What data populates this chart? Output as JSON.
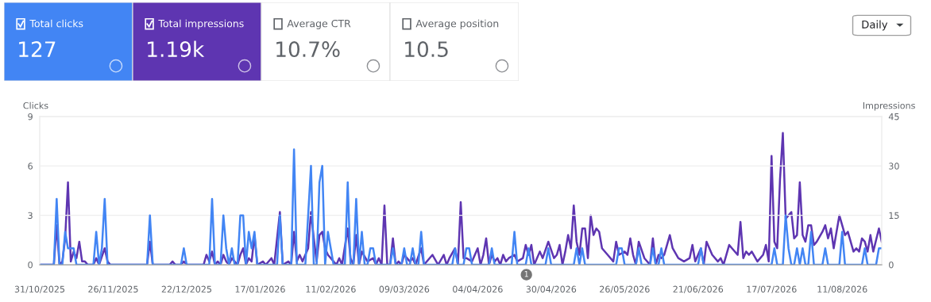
{
  "chart_data": [
    {
      "type": "other",
      "categories": [
        "Total clicks",
        "Total impressions",
        "Average CTR",
        "Average position"
      ],
      "value_labels": [
        "127",
        "1.19k",
        "10.7%",
        "10.5"
      ],
      "colors": [
        "#4285f4",
        "#5e35b1",
        "#ffffff",
        "#ffffff"
      ],
      "annotations": [
        "Daily"
      ]
    },
    {
      "type": "line",
      "ylabel": "Clicks",
      "y2label": "Impressions",
      "xlim": [
        "2025-10-31",
        "2026-08-25"
      ],
      "xticks": [
        {
          "value": "2025-10-31",
          "label": "31/10/2025"
        },
        {
          "value": "2025-11-26",
          "label": "26/11/2025"
        },
        {
          "value": "2025-12-22",
          "label": "22/12/2025"
        },
        {
          "value": "2026-01-17",
          "label": "17/01/2026"
        },
        {
          "value": "2026-02-11",
          "label": "11/02/2026"
        },
        {
          "value": "2026-03-09",
          "label": "09/03/2026"
        },
        {
          "value": "2026-04-04",
          "label": "04/04/2026"
        },
        {
          "value": "2026-04-30",
          "label": "30/04/2026"
        },
        {
          "value": "2026-05-26",
          "label": "26/05/2026"
        },
        {
          "value": "2026-06-21",
          "label": "21/06/2026"
        },
        {
          "value": "2026-07-17",
          "label": "17/07/2026"
        },
        {
          "value": "2026-08-11",
          "label": "11/08/2026"
        }
      ],
      "ylim": [
        0,
        9
      ],
      "yticks": [
        0,
        3,
        6,
        9
      ],
      "y2lim": [
        0,
        45
      ],
      "y2ticks": [
        0,
        15,
        30,
        45
      ],
      "grid": "y",
      "marker": "none",
      "line_style": "solid",
      "annotations": [
        "1"
      ],
      "series": [
        {
          "axis": "y2",
          "color": "#5e35b1",
          "x": [
            "2025-10-31",
            "2025-11-05",
            "2025-11-06",
            "2025-11-07",
            "2025-11-08",
            "2025-11-09",
            "2025-11-10",
            "2025-11-11",
            "2025-11-12",
            "2025-11-13",
            "2025-11-14",
            "2025-11-15",
            "2025-11-16",
            "2025-11-17",
            "2025-11-19",
            "2025-11-20",
            "2025-11-21",
            "2025-11-23",
            "2025-11-24",
            "2025-11-25",
            "2025-12-08",
            "2025-12-09",
            "2025-12-10",
            "2025-12-16",
            "2025-12-17",
            "2025-12-18",
            "2025-12-20",
            "2025-12-21",
            "2025-12-22",
            "2025-12-28",
            "2025-12-29",
            "2025-12-30",
            "2025-12-31",
            "2026-01-01",
            "2026-01-02",
            "2026-01-03",
            "2026-01-04",
            "2026-01-05",
            "2026-01-06",
            "2026-01-07",
            "2026-01-08",
            "2026-01-09",
            "2026-01-10",
            "2026-01-11",
            "2026-01-12",
            "2026-01-13",
            "2026-01-14",
            "2026-01-15",
            "2026-01-16",
            "2026-01-18",
            "2026-01-19",
            "2026-01-21",
            "2026-01-22",
            "2026-01-24",
            "2026-01-25",
            "2026-01-27",
            "2026-01-28",
            "2026-01-29",
            "2026-01-30",
            "2026-01-31",
            "2026-02-01",
            "2026-02-03",
            "2026-02-04",
            "2026-02-05",
            "2026-02-06",
            "2026-02-07",
            "2026-02-08",
            "2026-02-09",
            "2026-02-10",
            "2026-02-12",
            "2026-02-13",
            "2026-02-14",
            "2026-02-15",
            "2026-02-17",
            "2026-02-18",
            "2026-02-19",
            "2026-02-20",
            "2026-02-21",
            "2026-02-22",
            "2026-02-24",
            "2026-02-26",
            "2026-02-27",
            "2026-02-28",
            "2026-03-01",
            "2026-03-02",
            "2026-03-03",
            "2026-03-04",
            "2026-03-05",
            "2026-03-06",
            "2026-03-07",
            "2026-03-08",
            "2026-03-09",
            "2026-03-11",
            "2026-03-12",
            "2026-03-13",
            "2026-03-15",
            "2026-03-16",
            "2026-03-19",
            "2026-03-21",
            "2026-03-23",
            "2026-03-24",
            "2026-03-25",
            "2026-03-27",
            "2026-03-28",
            "2026-03-29",
            "2026-03-30",
            "2026-03-31",
            "2026-04-02",
            "2026-04-04",
            "2026-04-05",
            "2026-04-06",
            "2026-04-07",
            "2026-04-08",
            "2026-04-09",
            "2026-04-10",
            "2026-04-11",
            "2026-04-12",
            "2026-04-13",
            "2026-04-14",
            "2026-04-15",
            "2026-04-17",
            "2026-04-18",
            "2026-04-20",
            "2026-04-21",
            "2026-04-22",
            "2026-04-23",
            "2026-04-24",
            "2026-04-26",
            "2026-04-27",
            "2026-04-29",
            "2026-05-01",
            "2026-05-02",
            "2026-05-03",
            "2026-05-04",
            "2026-05-05",
            "2026-05-06",
            "2026-05-07",
            "2026-05-08",
            "2026-05-09",
            "2026-05-10",
            "2026-05-11",
            "2026-05-12",
            "2026-05-13",
            "2026-05-14",
            "2026-05-15",
            "2026-05-16",
            "2026-05-17",
            "2026-05-18",
            "2026-05-20",
            "2026-05-22",
            "2026-05-23",
            "2026-05-24",
            "2026-05-26",
            "2026-05-27",
            "2026-05-28",
            "2026-05-29",
            "2026-05-30",
            "2026-05-31",
            "2026-06-02",
            "2026-06-04",
            "2026-06-05",
            "2026-06-06",
            "2026-06-07",
            "2026-06-08",
            "2026-06-09",
            "2026-06-11",
            "2026-06-12",
            "2026-06-14",
            "2026-06-16",
            "2026-06-18",
            "2026-06-19",
            "2026-06-20",
            "2026-06-21",
            "2026-06-22",
            "2026-06-23",
            "2026-06-24",
            "2026-06-26",
            "2026-06-28",
            "2026-06-29",
            "2026-06-30",
            "2026-07-01",
            "2026-07-02",
            "2026-07-03",
            "2026-07-05",
            "2026-07-06",
            "2026-07-07",
            "2026-07-08",
            "2026-07-09",
            "2026-07-10",
            "2026-07-12",
            "2026-07-14",
            "2026-07-15",
            "2026-07-16",
            "2026-07-17",
            "2026-07-18",
            "2026-07-19",
            "2026-07-20",
            "2026-07-21",
            "2026-07-22",
            "2026-07-23",
            "2026-07-24",
            "2026-07-25",
            "2026-07-26",
            "2026-07-27",
            "2026-07-28",
            "2026-07-29",
            "2026-07-30",
            "2026-07-31",
            "2026-08-01",
            "2026-08-02",
            "2026-08-04",
            "2026-08-05",
            "2026-08-06",
            "2026-08-07",
            "2026-08-08",
            "2026-08-09",
            "2026-08-10",
            "2026-08-11",
            "2026-08-12",
            "2026-08-13",
            "2026-08-15",
            "2026-08-16",
            "2026-08-17",
            "2026-08-18",
            "2026-08-19",
            "2026-08-20",
            "2026-08-21",
            "2026-08-22",
            "2026-08-24",
            "2026-08-25"
          ],
          "values": [
            0,
            0,
            12,
            0,
            1,
            8,
            25,
            1,
            4,
            2,
            7,
            1,
            1,
            0,
            0,
            2,
            0,
            5,
            1,
            0,
            0,
            7,
            0,
            0,
            1,
            0,
            0,
            1,
            0,
            0,
            3,
            1,
            4,
            0,
            1,
            0,
            3,
            1,
            0,
            2,
            1,
            0,
            3,
            5,
            0,
            2,
            1,
            9,
            0,
            1,
            0,
            2,
            0,
            16,
            0,
            1,
            0,
            10,
            1,
            3,
            1,
            5,
            16,
            8,
            1,
            9,
            10,
            5,
            3,
            1,
            0,
            2,
            0,
            11,
            2,
            0,
            9,
            0,
            4,
            1,
            2,
            0,
            2,
            0,
            18,
            0,
            0,
            8,
            0,
            1,
            0,
            3,
            1,
            2,
            0,
            5,
            0,
            3,
            0,
            3,
            0,
            2,
            5,
            0,
            19,
            2,
            2,
            1,
            5,
            0,
            3,
            8,
            0,
            3,
            1,
            2,
            0,
            3,
            1,
            2,
            3,
            1,
            2,
            6,
            3,
            6,
            0,
            4,
            2,
            7,
            2,
            3,
            6,
            0,
            4,
            9,
            5,
            18,
            7,
            3,
            11,
            11,
            2,
            15,
            9,
            11,
            10,
            5,
            3,
            1,
            7,
            3,
            4,
            3,
            8,
            3,
            0,
            7,
            2,
            0,
            8,
            0,
            3,
            2,
            3,
            9,
            5,
            2,
            1,
            2,
            6,
            1,
            3,
            5,
            0,
            7,
            3,
            1,
            2,
            0,
            3,
            6,
            5,
            3,
            13,
            2,
            4,
            3,
            4,
            1,
            3,
            6,
            1,
            33,
            7,
            5,
            26,
            40,
            14,
            15,
            16,
            8,
            9,
            25,
            9,
            7,
            12,
            12,
            6,
            7,
            10,
            12,
            8,
            11,
            5,
            10,
            15,
            12,
            9,
            10,
            4,
            5,
            4,
            8,
            7,
            4,
            9,
            4,
            11,
            7
          ]
        },
        {
          "color": "#4285f4",
          "x": [
            "2025-10-31",
            "2025-11-05",
            "2025-11-06",
            "2025-11-07",
            "2025-11-08",
            "2025-11-09",
            "2025-11-10",
            "2025-11-12",
            "2025-11-13",
            "2025-11-19",
            "2025-11-20",
            "2025-11-21",
            "2025-11-22",
            "2025-11-23",
            "2025-11-24",
            "2025-12-08",
            "2025-12-09",
            "2025-12-10",
            "2025-12-20",
            "2025-12-21",
            "2025-12-22",
            "2025-12-30",
            "2025-12-31",
            "2026-01-01",
            "2026-01-03",
            "2026-01-04",
            "2026-01-05",
            "2026-01-06",
            "2026-01-07",
            "2026-01-08",
            "2026-01-09",
            "2026-01-10",
            "2026-01-11",
            "2026-01-12",
            "2026-01-13",
            "2026-01-14",
            "2026-01-15",
            "2026-01-16",
            "2026-01-23",
            "2026-01-24",
            "2026-01-25",
            "2026-01-28",
            "2026-01-29",
            "2026-01-30",
            "2026-02-02",
            "2026-02-04",
            "2026-02-05",
            "2026-02-06",
            "2026-02-07",
            "2026-02-08",
            "2026-02-09",
            "2026-02-10",
            "2026-02-11",
            "2026-02-12",
            "2026-02-16",
            "2026-02-17",
            "2026-02-18",
            "2026-02-19",
            "2026-02-20",
            "2026-02-21",
            "2026-02-22",
            "2026-02-23",
            "2026-02-24",
            "2026-02-25",
            "2026-02-26",
            "2026-02-27",
            "2026-03-04",
            "2026-03-05",
            "2026-03-06",
            "2026-03-08",
            "2026-03-09",
            "2026-03-10",
            "2026-03-11",
            "2026-03-12",
            "2026-03-13",
            "2026-03-14",
            "2026-03-15",
            "2026-03-16",
            "2026-03-26",
            "2026-03-27",
            "2026-03-28",
            "2026-03-30",
            "2026-03-31",
            "2026-04-01",
            "2026-04-02",
            "2026-04-08",
            "2026-04-09",
            "2026-04-10",
            "2026-04-16",
            "2026-04-17",
            "2026-04-18",
            "2026-04-21",
            "2026-04-22",
            "2026-04-23",
            "2026-04-28",
            "2026-04-29",
            "2026-04-30",
            "2026-05-08",
            "2026-05-09",
            "2026-05-10",
            "2026-05-11",
            "2026-05-12",
            "2026-05-23",
            "2026-05-24",
            "2026-05-25",
            "2026-05-26",
            "2026-05-30",
            "2026-05-31",
            "2026-06-01",
            "2026-06-04",
            "2026-06-05",
            "2026-06-06",
            "2026-06-07",
            "2026-06-08",
            "2026-06-09",
            "2026-06-21",
            "2026-06-22",
            "2026-06-23",
            "2026-07-17",
            "2026-07-18",
            "2026-07-19",
            "2026-07-21",
            "2026-07-22",
            "2026-07-23",
            "2026-07-24",
            "2026-07-25",
            "2026-07-26",
            "2026-07-27",
            "2026-07-28",
            "2026-07-29",
            "2026-07-30",
            "2026-07-31",
            "2026-08-01",
            "2026-08-04",
            "2026-08-05",
            "2026-08-06",
            "2026-08-10",
            "2026-08-11",
            "2026-08-12",
            "2026-08-18",
            "2026-08-19",
            "2026-08-20",
            "2026-08-23",
            "2026-08-24",
            "2026-08-25"
          ],
          "values": [
            0,
            0,
            4,
            0,
            0,
            2,
            1,
            1,
            0,
            0,
            2,
            0,
            1,
            4,
            0,
            0,
            3,
            0,
            0,
            1,
            0,
            0,
            4,
            0,
            0,
            3,
            1,
            0,
            1,
            0,
            0,
            3,
            3,
            0,
            2,
            1,
            2,
            0,
            0,
            3,
            0,
            0,
            7,
            0,
            0,
            6,
            0,
            0,
            5,
            6,
            0,
            2,
            1,
            0,
            0,
            5,
            0,
            0,
            4,
            0,
            2,
            0,
            0,
            1,
            1,
            0,
            0,
            1,
            0,
            0,
            1,
            0,
            0,
            1,
            0,
            0,
            2,
            0,
            0,
            1,
            0,
            0,
            1,
            1,
            0,
            0,
            1,
            0,
            0,
            2,
            0,
            0,
            1,
            0,
            0,
            1,
            0,
            0,
            1,
            0,
            1,
            0,
            0,
            1,
            1,
            0,
            0,
            1,
            0,
            0,
            1,
            0,
            0,
            1,
            0,
            0,
            1,
            0,
            0,
            1,
            0,
            0,
            3,
            1,
            0,
            0,
            1,
            0,
            1,
            0,
            0,
            2,
            0,
            0,
            1,
            0,
            0,
            2,
            0,
            0,
            1,
            0,
            0,
            1,
            1
          ]
        }
      ]
    }
  ]
}
